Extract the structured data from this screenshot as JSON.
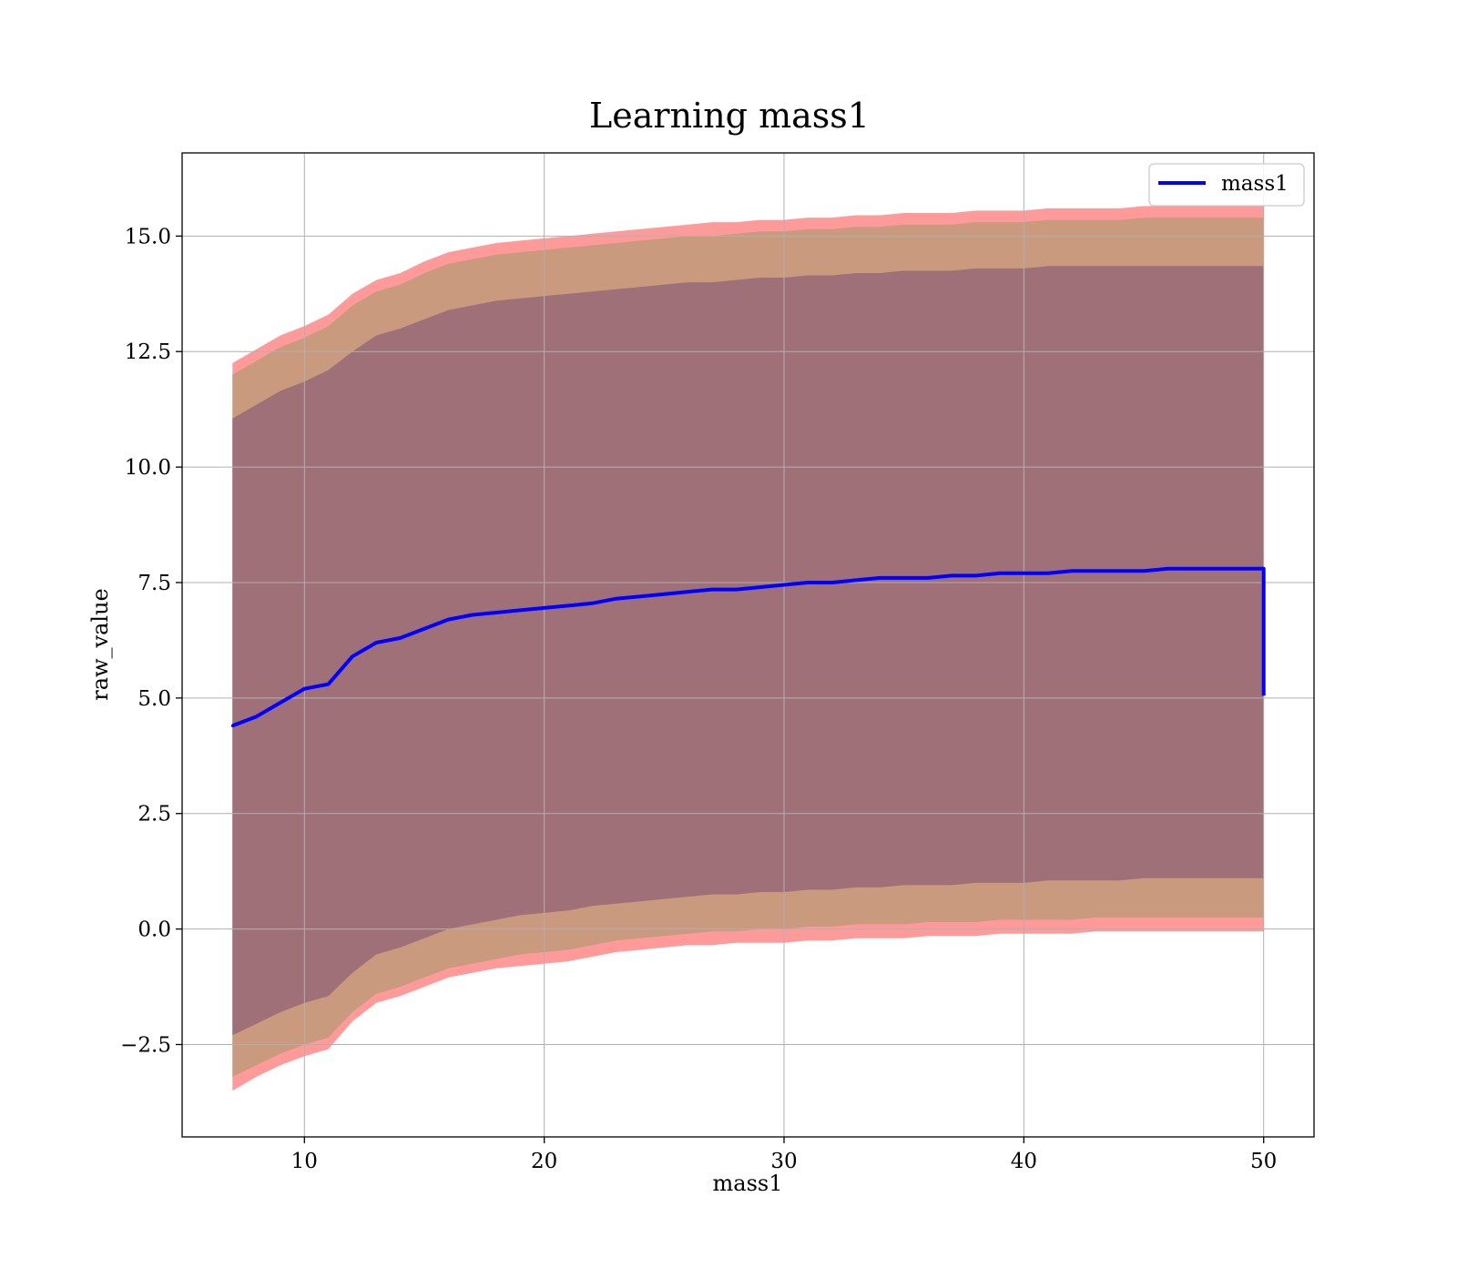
{
  "chart_data": {
    "type": "line",
    "title": "Learning mass1",
    "xlabel": "mass1",
    "ylabel": "raw_value",
    "xlim": [
      4.9,
      52.1
    ],
    "ylim": [
      -4.5,
      16.8
    ],
    "xticks": [
      10,
      20,
      30,
      40,
      50
    ],
    "yticks": [
      -2.5,
      0.0,
      2.5,
      5.0,
      7.5,
      10.0,
      12.5,
      15.0
    ],
    "ytick_labels": [
      "−2.5",
      "0.0",
      "2.5",
      "5.0",
      "7.5",
      "10.0",
      "12.5",
      "15.0"
    ],
    "xtick_labels": [
      "10",
      "20",
      "30",
      "40",
      "50"
    ],
    "grid": true,
    "legend": {
      "placement": "top-right",
      "entries": [
        {
          "label": "mass1",
          "color": "#0000ff"
        }
      ]
    },
    "colors": {
      "line": "#0000ff",
      "band_outer": "#ff9a9a",
      "band_middle": "#c99a7e",
      "band_inner": "#a07078"
    },
    "x": [
      7,
      8,
      9,
      10,
      11,
      12,
      13,
      14,
      15,
      16,
      17,
      18,
      19,
      20,
      21,
      22,
      23,
      24,
      25,
      26,
      27,
      28,
      29,
      30,
      31,
      32,
      33,
      34,
      35,
      36,
      37,
      38,
      39,
      40,
      41,
      42,
      43,
      44,
      45,
      46,
      47,
      48,
      49,
      50
    ],
    "series": [
      {
        "name": "mass1",
        "values": [
          4.4,
          4.6,
          4.9,
          5.2,
          5.3,
          5.9,
          6.2,
          6.3,
          6.5,
          6.7,
          6.8,
          6.85,
          6.9,
          6.95,
          7.0,
          7.05,
          7.15,
          7.2,
          7.25,
          7.3,
          7.35,
          7.35,
          7.4,
          7.45,
          7.5,
          7.5,
          7.55,
          7.6,
          7.6,
          7.6,
          7.65,
          7.65,
          7.7,
          7.7,
          7.7,
          7.75,
          7.75,
          7.75,
          7.75,
          7.8,
          7.8,
          7.8,
          7.8,
          7.8
        ]
      }
    ],
    "bands": [
      {
        "lower": [
          -3.5,
          -3.2,
          -2.95,
          -2.75,
          -2.6,
          -2.0,
          -1.6,
          -1.45,
          -1.25,
          -1.05,
          -0.95,
          -0.85,
          -0.8,
          -0.75,
          -0.7,
          -0.6,
          -0.5,
          -0.45,
          -0.4,
          -0.35,
          -0.35,
          -0.3,
          -0.3,
          -0.3,
          -0.25,
          -0.25,
          -0.2,
          -0.2,
          -0.2,
          -0.15,
          -0.15,
          -0.15,
          -0.1,
          -0.1,
          -0.1,
          -0.1,
          -0.05,
          -0.05,
          -0.05,
          -0.05,
          -0.05,
          -0.05,
          -0.05,
          -0.05
        ],
        "upper": [
          12.25,
          12.55,
          12.85,
          13.05,
          13.3,
          13.75,
          14.05,
          14.2,
          14.45,
          14.65,
          14.75,
          14.85,
          14.9,
          14.95,
          15.0,
          15.05,
          15.1,
          15.15,
          15.2,
          15.25,
          15.3,
          15.3,
          15.35,
          15.35,
          15.4,
          15.4,
          15.45,
          15.45,
          15.5,
          15.5,
          15.5,
          15.55,
          15.55,
          15.55,
          15.6,
          15.6,
          15.6,
          15.6,
          15.65,
          15.65,
          15.65,
          15.65,
          15.65,
          15.65
        ]
      },
      {
        "lower": [
          -3.2,
          -2.95,
          -2.7,
          -2.5,
          -2.35,
          -1.8,
          -1.4,
          -1.25,
          -1.05,
          -0.85,
          -0.75,
          -0.65,
          -0.55,
          -0.5,
          -0.45,
          -0.35,
          -0.25,
          -0.2,
          -0.15,
          -0.1,
          -0.05,
          -0.05,
          0.0,
          0.0,
          0.05,
          0.05,
          0.1,
          0.1,
          0.1,
          0.15,
          0.15,
          0.15,
          0.2,
          0.2,
          0.2,
          0.2,
          0.25,
          0.25,
          0.25,
          0.25,
          0.25,
          0.25,
          0.25,
          0.25
        ],
        "upper": [
          12.0,
          12.3,
          12.6,
          12.8,
          13.05,
          13.5,
          13.8,
          13.95,
          14.2,
          14.4,
          14.5,
          14.6,
          14.65,
          14.7,
          14.75,
          14.8,
          14.85,
          14.9,
          14.95,
          15.0,
          15.0,
          15.05,
          15.1,
          15.1,
          15.15,
          15.15,
          15.2,
          15.2,
          15.25,
          15.25,
          15.25,
          15.3,
          15.3,
          15.3,
          15.35,
          15.35,
          15.35,
          15.35,
          15.4,
          15.4,
          15.4,
          15.4,
          15.4,
          15.4
        ]
      },
      {
        "lower": [
          -2.3,
          -2.05,
          -1.8,
          -1.6,
          -1.45,
          -0.95,
          -0.55,
          -0.4,
          -0.2,
          0.0,
          0.1,
          0.2,
          0.3,
          0.35,
          0.4,
          0.5,
          0.55,
          0.6,
          0.65,
          0.7,
          0.75,
          0.75,
          0.8,
          0.8,
          0.85,
          0.85,
          0.9,
          0.9,
          0.95,
          0.95,
          0.95,
          1.0,
          1.0,
          1.0,
          1.05,
          1.05,
          1.05,
          1.05,
          1.1,
          1.1,
          1.1,
          1.1,
          1.1,
          1.1
        ],
        "upper": [
          11.05,
          11.35,
          11.65,
          11.85,
          12.1,
          12.5,
          12.85,
          13.0,
          13.2,
          13.4,
          13.5,
          13.6,
          13.65,
          13.7,
          13.75,
          13.8,
          13.85,
          13.9,
          13.95,
          14.0,
          14.0,
          14.05,
          14.1,
          14.1,
          14.15,
          14.15,
          14.2,
          14.2,
          14.25,
          14.25,
          14.25,
          14.3,
          14.3,
          14.3,
          14.35,
          14.35,
          14.35,
          14.35,
          14.35,
          14.35,
          14.35,
          14.35,
          14.35,
          14.35
        ]
      }
    ],
    "final_drop": {
      "x": 50,
      "value": 5.05
    }
  }
}
